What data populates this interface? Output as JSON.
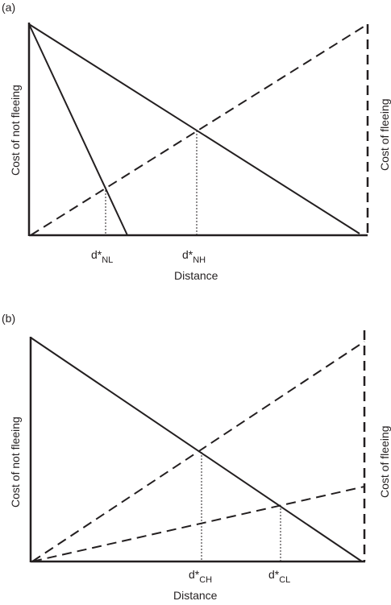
{
  "panel_a": {
    "label": "(a)",
    "y_left_label": "Cost  of not fleeing",
    "y_right_label": "Cost of fleeing",
    "x_label": "Distance",
    "marker_nl": {
      "base": "d*",
      "sub": "NL"
    },
    "marker_nh": {
      "base": "d*",
      "sub": "NH"
    }
  },
  "panel_b": {
    "label": "(b)",
    "y_left_label": "Cost  of not fleeing",
    "y_right_label": "Cost of fleeing",
    "x_label": "Distance",
    "marker_ch": {
      "base": "d*",
      "sub": "CH"
    },
    "marker_cl": {
      "base": "d*",
      "sub": "CL"
    }
  }
}
